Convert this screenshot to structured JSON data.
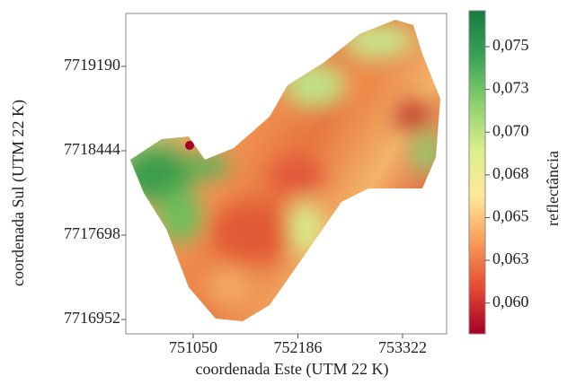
{
  "chart_data": {
    "type": "map",
    "xlabel": "coordenada Este (UTM 22 K)",
    "ylabel": "coordenada Sul (UTM 22 K)",
    "xlim": [
      750319,
      753800
    ],
    "xticks": [
      751050,
      752186,
      753322
    ],
    "ylim": [
      7716825,
      7719658
    ],
    "yticks": [
      7716952,
      7717698,
      7718444,
      7719190
    ],
    "colorbar_label": "reflectância",
    "clim": [
      0.0582,
      0.0771
    ],
    "colorbar_ticks": [
      {
        "value": 0.06,
        "label": "0,060"
      },
      {
        "value": 0.0625,
        "label": "0,063"
      },
      {
        "value": 0.065,
        "label": "0,065"
      },
      {
        "value": 0.0675,
        "label": "0,068"
      },
      {
        "value": 0.07,
        "label": "0,070"
      },
      {
        "value": 0.0725,
        "label": "0,073"
      },
      {
        "value": 0.075,
        "label": "0,075"
      }
    ],
    "colormap": [
      "#a50026",
      "#e34a33",
      "#f99d59",
      "#fee99a",
      "#d9ef8b",
      "#8ccf6e",
      "#3aa357",
      "#157a3f"
    ]
  }
}
